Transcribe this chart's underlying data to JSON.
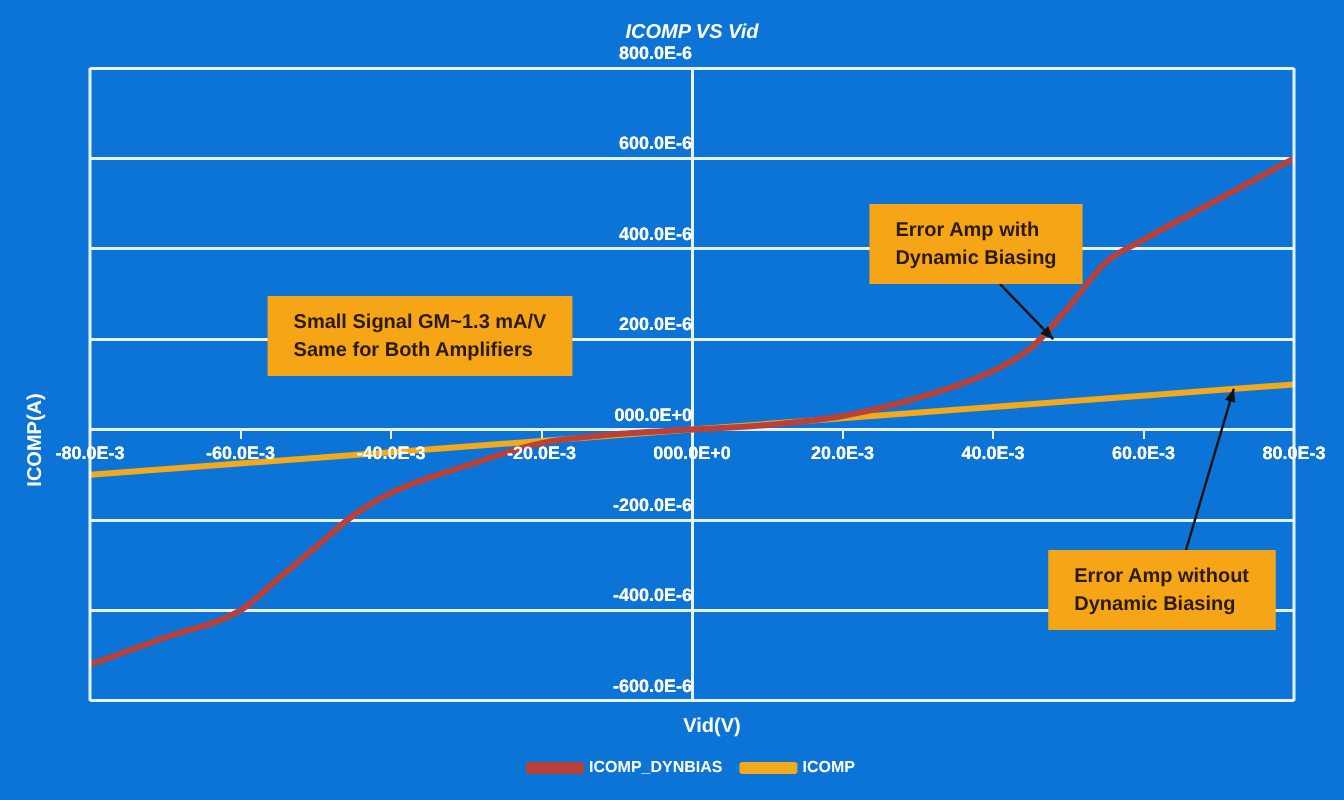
{
  "chart_data": {
    "type": "line",
    "title": "ICOMP VS Vid",
    "xlabel": "Vid(V)",
    "ylabel": "ICOMP(A)",
    "x": [
      -0.08,
      -0.07,
      -0.06,
      -0.055,
      -0.05,
      -0.045,
      -0.04,
      -0.03,
      -0.02,
      -0.01,
      0,
      0.01,
      0.02,
      0.03,
      0.04,
      0.045,
      0.05,
      0.055,
      0.06,
      0.07,
      0.08
    ],
    "series": [
      {
        "name": "ICOMP_DYNBIAS",
        "color": "#b8423a",
        "values": [
          -0.00052,
          -0.00046,
          -0.0004,
          -0.00033,
          -0.00026,
          -0.00019,
          -0.00014,
          -8e-05,
          -3e-05,
          -1e-05,
          0,
          1e-05,
          3e-05,
          7e-05,
          0.00013,
          0.00018,
          0.00027,
          0.00037,
          0.00042,
          0.00051,
          0.0006
        ]
      },
      {
        "name": "ICOMP",
        "color": "#f2a91c",
        "x": [
          -0.08,
          0,
          0.08
        ],
        "values": [
          -0.0001,
          0,
          0.0001
        ]
      }
    ],
    "xlim": [
      -0.08,
      0.08
    ],
    "xticks": [
      {
        "value": -0.08,
        "label": "-80.0E-3"
      },
      {
        "value": -0.06,
        "label": "-60.0E-3"
      },
      {
        "value": -0.04,
        "label": "-40.0E-3"
      },
      {
        "value": -0.02,
        "label": "-20.0E-3"
      },
      {
        "value": 0,
        "label": "000.0E+0"
      },
      {
        "value": 0.02,
        "label": "20.0E-3"
      },
      {
        "value": 0.04,
        "label": "40.0E-3"
      },
      {
        "value": 0.06,
        "label": "60.0E-3"
      },
      {
        "value": 0.08,
        "label": "80.0E-3"
      }
    ],
    "ylim": [
      -0.0006,
      0.0008
    ],
    "yticks": [
      {
        "value": -0.0006,
        "label": "-600.0E-6"
      },
      {
        "value": -0.0004,
        "label": "-400.0E-6"
      },
      {
        "value": -0.0002,
        "label": "-200.0E-6"
      },
      {
        "value": 0,
        "label": "000.0E+0"
      },
      {
        "value": 0.0002,
        "label": "200.0E-6"
      },
      {
        "value": 0.0004,
        "label": "400.0E-6"
      },
      {
        "value": 0.0006,
        "label": "600.0E-6"
      },
      {
        "value": 0.0008,
        "label": "800.0E-6"
      }
    ],
    "annotations": [
      "Small Signal GM~1.3 mA/V\nSame for Both Amplifiers",
      {
        "text": "Error Amp with\nDynamic Biasing",
        "x": 0.048,
        "y": 0.0002
      },
      {
        "text": "Error Amp without\nDynamic Biasing",
        "x": 0.072,
        "y": 9e-05
      }
    ],
    "grid": "y",
    "legend": "bottom",
    "marker": "none",
    "line_style": "solid"
  }
}
